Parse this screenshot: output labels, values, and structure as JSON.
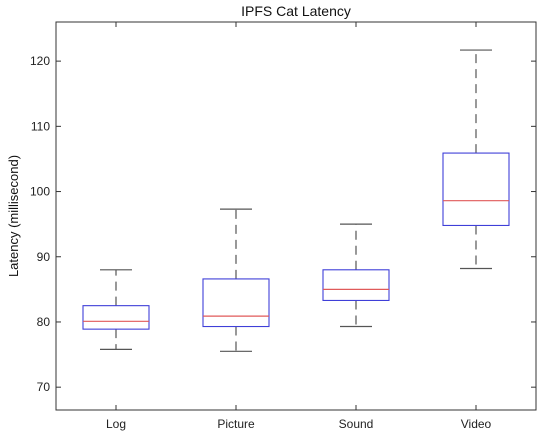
{
  "chart_data": {
    "type": "box",
    "title": "IPFS Cat Latency",
    "xlabel": "",
    "ylabel": "Latency (millisecond)",
    "ylim": [
      66.5,
      126
    ],
    "yticks": [
      70,
      80,
      90,
      100,
      110,
      120
    ],
    "grid": false,
    "categories": [
      "Log",
      "Picture",
      "Sound",
      "Video"
    ],
    "boxes": [
      {
        "name": "Log",
        "min": 75.8,
        "q1": 78.9,
        "median": 80.1,
        "q3": 82.5,
        "max": 88.0
      },
      {
        "name": "Picture",
        "min": 75.5,
        "q1": 79.3,
        "median": 80.9,
        "q3": 86.6,
        "max": 97.3
      },
      {
        "name": "Sound",
        "min": 79.3,
        "q1": 83.3,
        "median": 85.0,
        "q3": 88.0,
        "max": 95.0
      },
      {
        "name": "Video",
        "min": 88.2,
        "q1": 94.8,
        "median": 98.6,
        "q3": 105.9,
        "max": 121.7
      }
    ],
    "colors": {
      "box": "#3f3fd8",
      "median": "#e05a5a",
      "whisker": "#555555",
      "axis": "#333333"
    }
  }
}
